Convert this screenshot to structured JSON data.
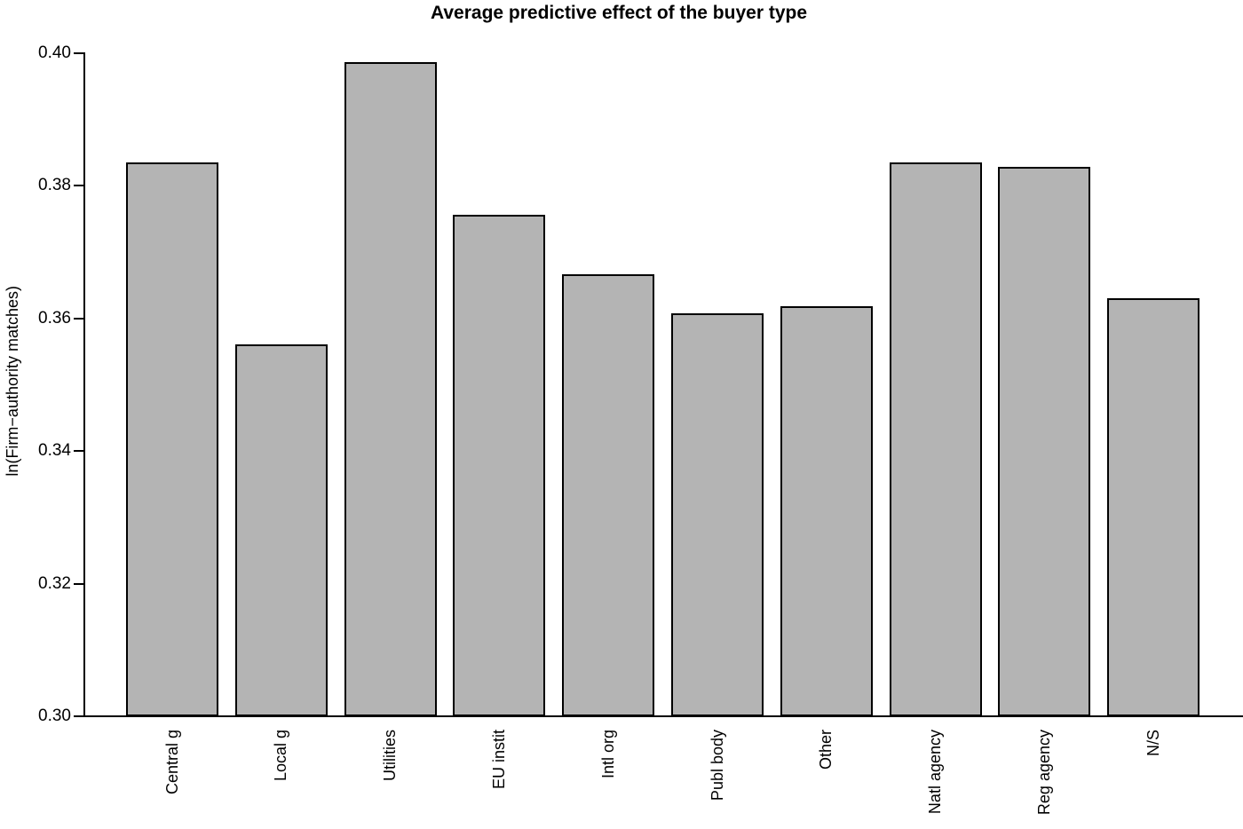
{
  "chart_data": {
    "type": "bar",
    "title": "Average predictive effect of the buyer type",
    "xlabel": "",
    "ylabel": "ln(Firm−authority matches)",
    "categories": [
      "Central g",
      "Local g",
      "Utilities",
      "EU instit",
      "Intl org",
      "Publ body",
      "Other",
      "Natl agency",
      "Reg agency",
      "N/S"
    ],
    "values": [
      0.3836,
      0.3561,
      0.3987,
      0.3757,
      0.3667,
      0.3608,
      0.3618,
      0.3835,
      0.3829,
      0.3631
    ],
    "ylim": [
      0.3,
      0.4
    ],
    "yticks": [
      0.3,
      0.32,
      0.34,
      0.36,
      0.38,
      0.4
    ],
    "ytick_label_format": "2dp",
    "grid": false,
    "legend_position": "none",
    "bar_color": "#b4b4b4",
    "bar_border_color": "#000000",
    "axis_color": "#000000",
    "background_color": "#ffffff"
  }
}
